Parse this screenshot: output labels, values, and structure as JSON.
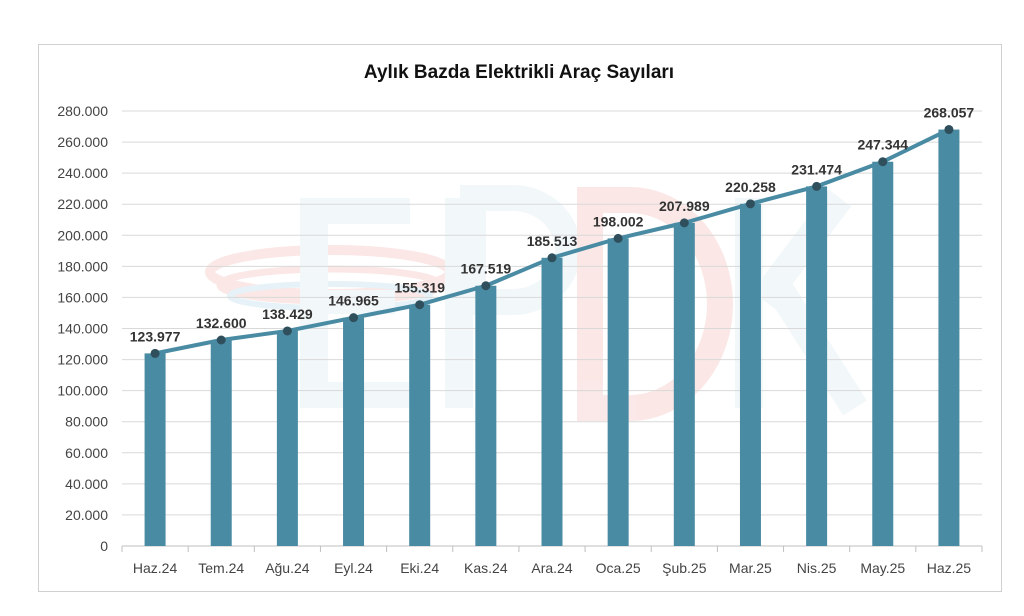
{
  "chart_data": {
    "type": "bar",
    "title": "Aylık Bazda Elektrikli Araç Sayıları",
    "categories": [
      "Haz.24",
      "Tem.24",
      "Ağu.24",
      "Eyl.24",
      "Eki.24",
      "Kas.24",
      "Ara.24",
      "Oca.25",
      "Şub.25",
      "Mar.25",
      "Nis.25",
      "May.25",
      "Haz.25"
    ],
    "values": [
      123977,
      132600,
      138429,
      146965,
      155319,
      167519,
      185513,
      198002,
      207989,
      220258,
      231474,
      247344,
      268057
    ],
    "value_labels": [
      "123.977",
      "132.600",
      "138.429",
      "146.965",
      "155.319",
      "167.519",
      "185.513",
      "198.002",
      "207.989",
      "220.258",
      "231.474",
      "247.344",
      "268.057"
    ],
    "overlay_line": true,
    "ylim": [
      0,
      280000
    ],
    "y_ticks": [
      0,
      20000,
      40000,
      60000,
      80000,
      100000,
      120000,
      140000,
      160000,
      180000,
      200000,
      220000,
      240000,
      260000,
      280000
    ],
    "y_tick_labels": [
      "0",
      "20.000",
      "40.000",
      "60.000",
      "80.000",
      "100.000",
      "120.000",
      "140.000",
      "160.000",
      "180.000",
      "200.000",
      "220.000",
      "240.000",
      "260.000",
      "280.000"
    ],
    "grid": true,
    "legend": "none",
    "colors": {
      "bar": "#4a8ba4",
      "line": "#4a8ba4",
      "marker": "#2f4f5c",
      "grid": "#d9d9d9"
    },
    "watermark": "EPDK"
  }
}
